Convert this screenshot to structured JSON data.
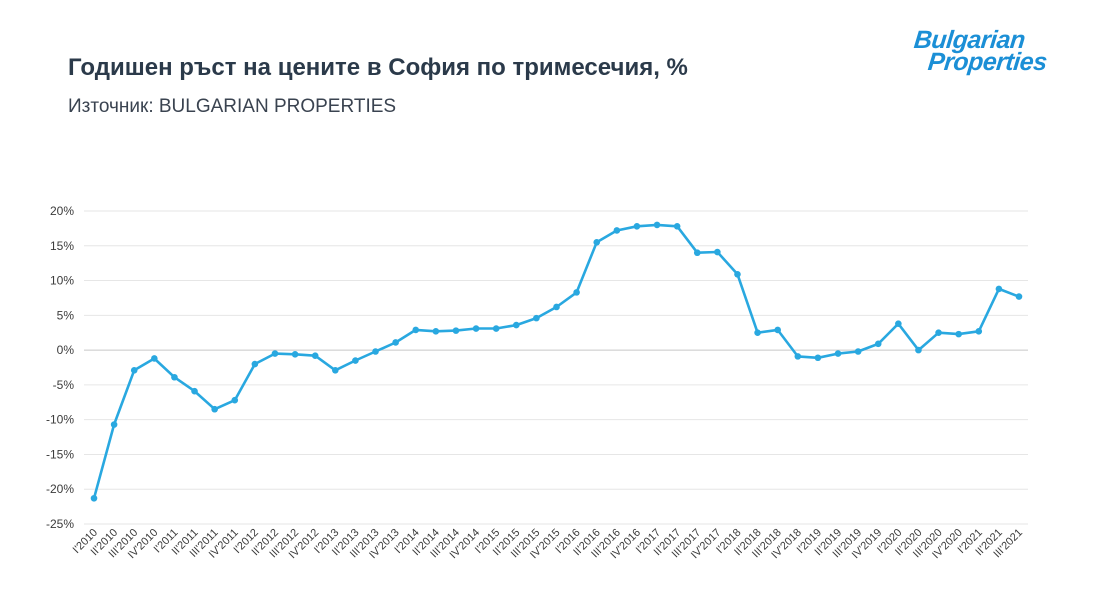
{
  "header": {
    "title": "Годишен ръст на цените в София по тримесечия, %",
    "subtitle": "Източник: BULGARIAN PROPERTIES"
  },
  "logo": {
    "line1": "Bulgarian",
    "line2": "Properties",
    "color": "#1b8fd6"
  },
  "chart_data": {
    "type": "line",
    "title": "Годишен ръст на цените в София по тримесечия, %",
    "xlabel": "",
    "ylabel": "",
    "ylim": [
      -25,
      20
    ],
    "yticks": [
      20,
      15,
      10,
      5,
      0,
      -5,
      -10,
      -15,
      -20,
      -25
    ],
    "ytick_labels": [
      "20%",
      "15%",
      "10%",
      "5%",
      "0%",
      "-5%",
      "-10%",
      "-15%",
      "-20%",
      "-25%"
    ],
    "grid": true,
    "legend": "none",
    "line_color": "#29a8e0",
    "categories": [
      "I'2010",
      "II'2010",
      "III'2010",
      "IV'2010",
      "I'2011",
      "II'2011",
      "III'2011",
      "IV'2011",
      "I'2012",
      "II'2012",
      "III'2012",
      "IV'2012",
      "I'2013",
      "II'2013",
      "III'2013",
      "IV'2013",
      "I'2014",
      "II'2014",
      "III'2014",
      "IV'2014",
      "I'2015",
      "II'2015",
      "III'2015",
      "IV'2015",
      "I'2016",
      "II'2016",
      "III'2016",
      "IV'2016",
      "I'2017",
      "II'2017",
      "III'2017",
      "IV'2017",
      "I'2018",
      "II'2018",
      "III'2018",
      "IV'2018",
      "I'2019",
      "II'2019",
      "III'2019",
      "IV'2019",
      "I'2020",
      "II'2020",
      "III'2020",
      "IV'2020",
      "I'2021",
      "II'2021",
      "III'2021"
    ],
    "series": [
      {
        "values": [
          -21.3,
          -10.7,
          -2.9,
          -1.2,
          -3.9,
          -5.9,
          -8.5,
          -7.2,
          -2.0,
          -0.5,
          -0.6,
          -0.8,
          -2.9,
          -1.5,
          -0.2,
          1.1,
          2.9,
          2.7,
          2.8,
          3.1,
          3.1,
          3.6,
          4.6,
          6.2,
          8.3,
          15.5,
          17.2,
          17.8,
          18.0,
          17.8,
          14.0,
          14.1,
          10.9,
          2.5,
          2.9,
          -0.9,
          -1.1,
          -0.5,
          -0.2,
          0.9,
          3.8,
          0.0,
          2.5,
          2.3,
          2.7,
          8.8,
          7.7
        ]
      }
    ]
  }
}
